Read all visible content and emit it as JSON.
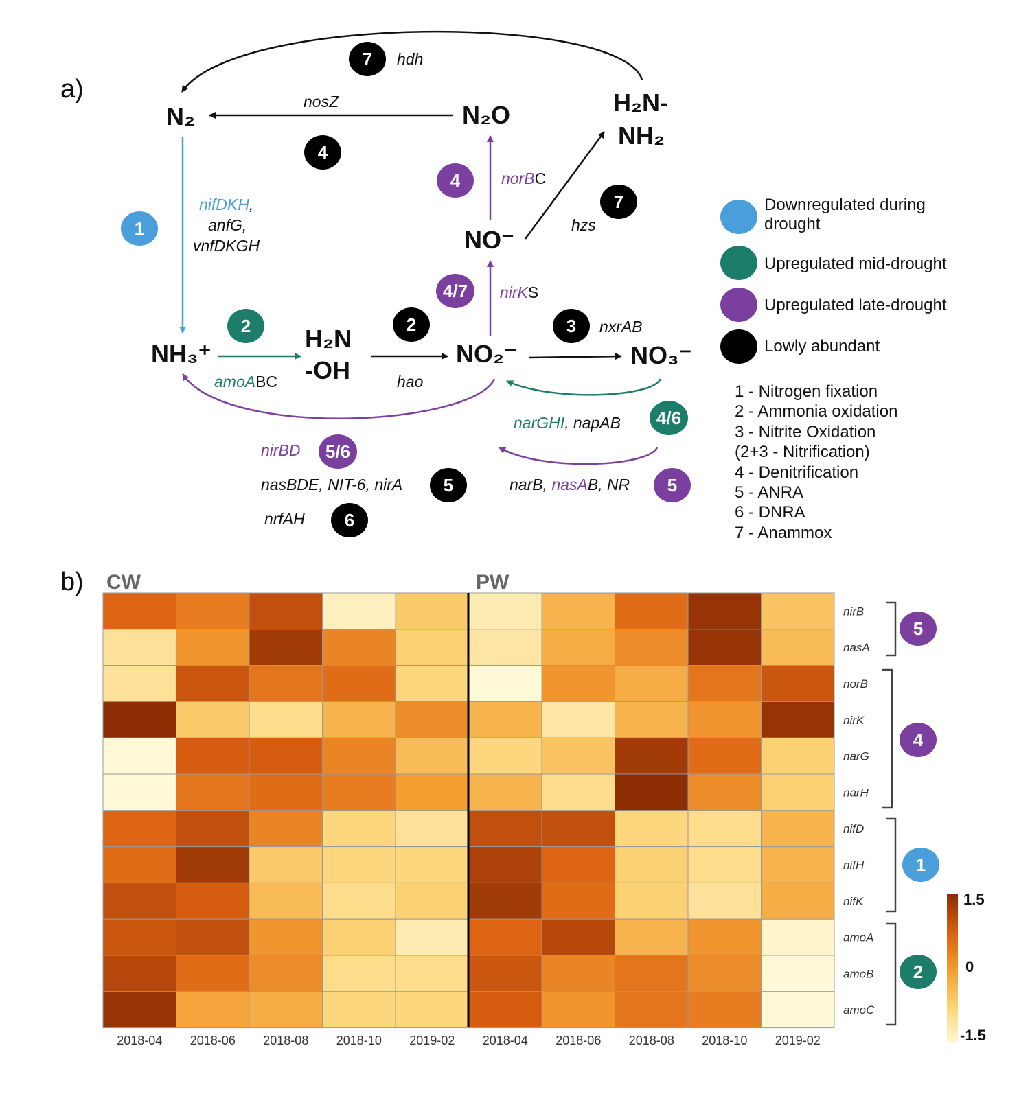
{
  "colors": {
    "downregulated": "#4a9fdb",
    "mid": "#1d7d6b",
    "late": "#7b3fa0",
    "low": "#000000",
    "text": "#111111"
  },
  "panel_a": {
    "label": "a)",
    "compounds": {
      "n2": "N₂",
      "n2o": "N₂O",
      "hydrazine_top": "H₂N-",
      "hydrazine_bottom": "NH₂",
      "no": "NO⁻",
      "nh3": "NH₃⁺",
      "hydroxylamine_top": "H₂N",
      "hydroxylamine_bottom": "-OH",
      "no2": "NO₂⁻",
      "no3": "NO₃⁻"
    },
    "genes": {
      "hdh": "hdh",
      "nosz": "nosZ",
      "norb_part": "norB",
      "norb_suffix": "C",
      "hzs": "hzs",
      "nif": "nifDKH",
      "nif_comma": ",",
      "anfg": "anfG,",
      "vnf": "vnfDKGH",
      "nirk_part": "nirK",
      "nirk_suffix": "S",
      "amoa_part": "amoA",
      "amoa_suffix": "BC",
      "hao": "hao",
      "nxrab": "nxrAB",
      "narghi": "narGHI",
      "napab": ", napAB",
      "nirbd": "nirBD",
      "nasbde": "nasBDE, NIT-6, nirA",
      "narb": "narB, ",
      "nasa_part": "nasA",
      "nasa_suffix": "B, NR",
      "nrfah": "nrfAH"
    },
    "badges": {
      "b7_top": "7",
      "b4_n2o": "4",
      "b4_nor": "4",
      "b7_hzs": "7",
      "b1": "1",
      "b47": "4/7",
      "b2_amo": "2",
      "b2_hao": "2",
      "b3": "3",
      "b46": "4/6",
      "b56": "5/6",
      "b5_nas": "5",
      "b5_narb": "5",
      "b6": "6"
    },
    "legend": [
      {
        "lines": [
          "Downregulated during",
          "drought"
        ],
        "color": "#4a9fdb"
      },
      {
        "lines": [
          "Upregulated mid-drought"
        ],
        "color": "#1d7d6b"
      },
      {
        "lines": [
          "Upregulated late-drought"
        ],
        "color": "#7b3fa0"
      },
      {
        "lines": [
          "Lowly abundant"
        ],
        "color": "#000000"
      }
    ],
    "pathways": [
      "1 - Nitrogen fixation",
      "2 - Ammonia oxidation",
      "3 - Nitrite Oxidation",
      "(2+3 - Nitrification)",
      "4 - Denitrification",
      "5 - ANRA",
      "6 - DNRA",
      "7 - Anammox"
    ]
  },
  "panel_b": {
    "label": "b)",
    "groups": [
      "CW",
      "PW"
    ],
    "dates": [
      "2018-04",
      "2018-06",
      "2018-08",
      "2018-10",
      "2019-02",
      "2018-04",
      "2018-06",
      "2018-08",
      "2018-10",
      "2019-02"
    ],
    "genes": [
      "nirB",
      "nasA",
      "norB",
      "nirK",
      "narG",
      "narH",
      "nifD",
      "nifH",
      "nifK",
      "amoA",
      "amoB",
      "amoC"
    ],
    "gene_groups": [
      {
        "badge": "5",
        "color": "#7b3fa0"
      },
      {
        "badge": "4",
        "color": "#7b3fa0"
      },
      {
        "badge": "1",
        "color": "#4a9fdb"
      },
      {
        "badge": "2",
        "color": "#1d7d6b"
      }
    ],
    "colorbar": {
      "max": "1.5",
      "mid": "0",
      "min": "-1.5"
    }
  },
  "chart_data": {
    "type": "heatmap",
    "title": "",
    "x": [
      "CW 2018-04",
      "CW 2018-06",
      "CW 2018-08",
      "CW 2018-10",
      "CW 2019-02",
      "PW 2018-04",
      "PW 2018-06",
      "PW 2018-08",
      "PW 2018-10",
      "PW 2019-02"
    ],
    "y": [
      "nirB",
      "nasA",
      "norB",
      "nirK",
      "narG",
      "narH",
      "nifD",
      "nifH",
      "nifK",
      "amoA",
      "amoB",
      "amoC"
    ],
    "zlim": [
      -1.5,
      1.5
    ],
    "values": [
      [
        0.7,
        0.4,
        1.0,
        -1.3,
        -0.6,
        -1.2,
        -0.3,
        0.6,
        1.4,
        -0.5
      ],
      [
        -1.0,
        0.1,
        1.3,
        0.3,
        -0.7,
        -1.1,
        -0.2,
        0.2,
        1.4,
        -0.4
      ],
      [
        -1.0,
        0.9,
        0.5,
        0.6,
        -0.8,
        -1.5,
        0.1,
        -0.2,
        0.5,
        0.9
      ],
      [
        1.5,
        -0.6,
        -0.9,
        -0.3,
        0.2,
        -0.3,
        -1.1,
        -0.3,
        0.1,
        1.4
      ],
      [
        -1.5,
        0.8,
        0.8,
        0.3,
        -0.4,
        -0.8,
        -0.5,
        1.3,
        0.6,
        -0.7
      ],
      [
        -1.6,
        0.5,
        0.6,
        0.4,
        0.0,
        -0.3,
        -0.9,
        1.5,
        0.2,
        -0.7
      ],
      [
        0.7,
        1.0,
        0.3,
        -0.8,
        -1.0,
        1.0,
        1.0,
        -0.8,
        -0.9,
        -0.3
      ],
      [
        0.6,
        1.3,
        -0.6,
        -0.8,
        -0.8,
        1.2,
        0.7,
        -0.7,
        -0.9,
        -0.3
      ],
      [
        1.0,
        0.8,
        -0.4,
        -0.9,
        -0.7,
        1.3,
        0.6,
        -0.7,
        -1.0,
        -0.2
      ],
      [
        0.9,
        1.0,
        0.1,
        -0.7,
        -1.2,
        0.7,
        1.1,
        -0.3,
        0.1,
        -1.4
      ],
      [
        1.1,
        0.6,
        0.2,
        -0.9,
        -0.9,
        0.9,
        0.3,
        0.5,
        0.2,
        -1.5
      ],
      [
        1.4,
        -0.1,
        -0.2,
        -0.8,
        -0.8,
        0.8,
        0.1,
        0.5,
        0.4,
        -1.5
      ]
    ]
  }
}
